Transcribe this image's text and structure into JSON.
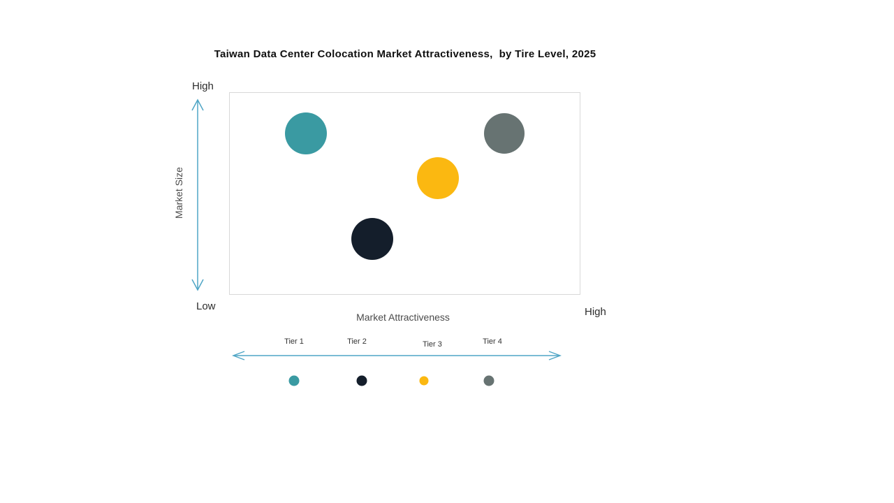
{
  "title": "Taiwan Data Center Colocation Market Attractiveness,  by Tire Level, 2025",
  "axes": {
    "y_label": "Market Size",
    "y_top_label": "High",
    "y_bottom_label": "Low",
    "x_label": "Market Attractiveness",
    "x_right_label": "High"
  },
  "colors": {
    "arrow": "#4FA5C5",
    "plot_border": "#D8D8D8"
  },
  "chart_data": {
    "type": "bubble",
    "title": "Taiwan Data Center Colocation Market Attractiveness, by Tire Level, 2025",
    "xlabel": "Market Attractiveness",
    "ylabel": "Market Size",
    "x_axis_range_labels": [
      "Low",
      "High"
    ],
    "y_axis_range_labels": [
      "Low",
      "High"
    ],
    "grid": false,
    "legend_position": "bottom",
    "points": [
      {
        "name": "Tier 1",
        "color": "#3A9AA2",
        "x_pct": 21.7,
        "y_pct": 20.3,
        "market_attractiveness": "low-mid",
        "market_size": "high",
        "radius_px": 30
      },
      {
        "name": "Tier 2",
        "color": "#141E2B",
        "x_pct": 40.7,
        "y_pct": 72.5,
        "market_attractiveness": "mid",
        "market_size": "low-mid",
        "radius_px": 30
      },
      {
        "name": "Tier 3",
        "color": "#FBB811",
        "x_pct": 59.5,
        "y_pct": 42.5,
        "market_attractiveness": "mid-high",
        "market_size": "mid",
        "radius_px": 30
      },
      {
        "name": "Tier 4",
        "color": "#677372",
        "x_pct": 78.5,
        "y_pct": 20.2,
        "market_attractiveness": "high",
        "market_size": "high",
        "radius_px": 29
      }
    ],
    "legend": [
      {
        "label": "Tier 1",
        "color": "#3A9AA2"
      },
      {
        "label": "Tier 2",
        "color": "#141E2B"
      },
      {
        "label": "Tier 3",
        "color": "#FBB811"
      },
      {
        "label": "Tier 4",
        "color": "#677372"
      }
    ]
  }
}
